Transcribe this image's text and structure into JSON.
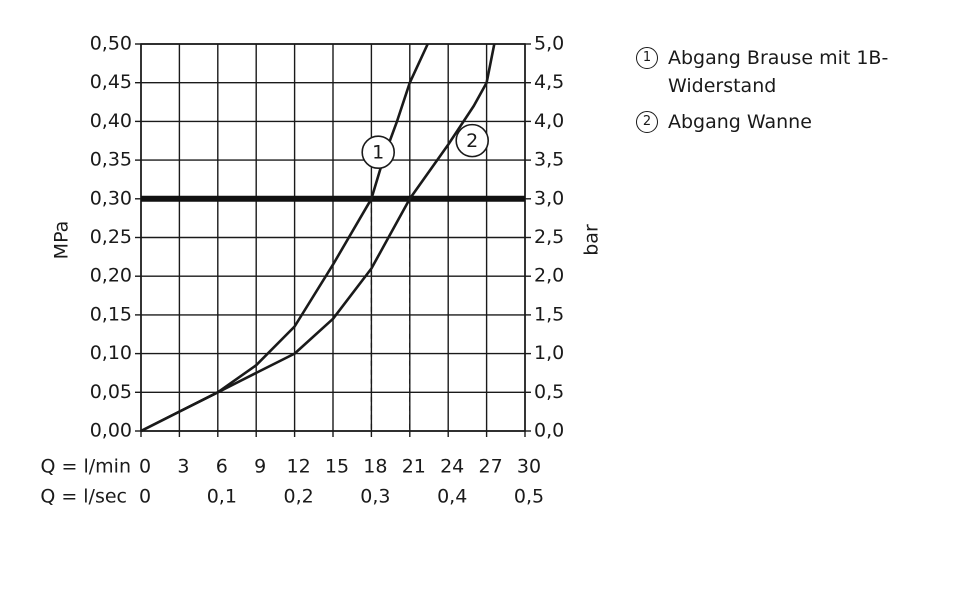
{
  "chart_data": {
    "type": "line",
    "y_label": "MPa",
    "y2_label": "bar",
    "x_label": "Q = l/min",
    "x2_label": "Q = l/sec",
    "xlim": [
      0,
      30
    ],
    "xticks": [
      0,
      3,
      6,
      9,
      12,
      15,
      18,
      21,
      24,
      27,
      30
    ],
    "x2lim": [
      0,
      0.5
    ],
    "x2ticks": [
      0,
      {
        "value": 0.1,
        "label": "0,1"
      },
      {
        "value": 0.2,
        "label": "0,2"
      },
      {
        "value": 0.3,
        "label": "0,3"
      },
      {
        "value": 0.4,
        "label": "0,4"
      },
      {
        "value": 0.5,
        "label": "0,5"
      }
    ],
    "ylim": [
      0,
      0.5
    ],
    "yticks": [
      {
        "value": 0,
        "label": "0,00"
      },
      {
        "value": 0.05,
        "label": "0,05"
      },
      {
        "value": 0.1,
        "label": "0,10"
      },
      {
        "value": 0.15,
        "label": "0,15"
      },
      {
        "value": 0.2,
        "label": "0,20"
      },
      {
        "value": 0.25,
        "label": "0,25"
      },
      {
        "value": 0.3,
        "label": "0,30"
      },
      {
        "value": 0.35,
        "label": "0,35"
      },
      {
        "value": 0.4,
        "label": "0,40"
      },
      {
        "value": 0.45,
        "label": "0,45"
      },
      {
        "value": 0.5,
        "label": "0,50"
      }
    ],
    "y2lim": [
      0,
      5
    ],
    "y2ticks": [
      {
        "value": 0,
        "label": "0,0"
      },
      {
        "value": 0.5,
        "label": "0,5"
      },
      {
        "value": 1,
        "label": "1,0"
      },
      {
        "value": 1.5,
        "label": "1,5"
      },
      {
        "value": 2,
        "label": "2,0"
      },
      {
        "value": 2.5,
        "label": "2,5"
      },
      {
        "value": 3,
        "label": "3,0"
      },
      {
        "value": 3.5,
        "label": "3,5"
      },
      {
        "value": 4,
        "label": "4,0"
      },
      {
        "value": 4.5,
        "label": "4,5"
      },
      {
        "value": 5,
        "label": "5,0"
      }
    ],
    "grid": true,
    "reference_line": 0.3,
    "drop_lines": [
      18,
      21
    ],
    "series": [
      {
        "name": "Abgang Brause mit 1B-Widerstand",
        "label": "1",
        "color": "#1a1a1a",
        "x": [
          0,
          3,
          6,
          9,
          12,
          15,
          18,
          19,
          20,
          21,
          22.4
        ],
        "values": [
          0,
          0.025,
          0.05,
          0.085,
          0.135,
          0.215,
          0.3,
          0.355,
          0.4,
          0.45,
          0.5
        ]
      },
      {
        "name": "Abgang Wanne",
        "label": "2",
        "color": "#1a1a1a",
        "x": [
          0,
          3,
          6,
          9,
          12,
          15,
          18,
          21,
          24,
          26,
          27,
          27.6
        ],
        "values": [
          0,
          0.025,
          0.05,
          0.075,
          0.1,
          0.145,
          0.21,
          0.3,
          0.37,
          0.42,
          0.45,
          0.5
        ]
      }
    ]
  }
}
